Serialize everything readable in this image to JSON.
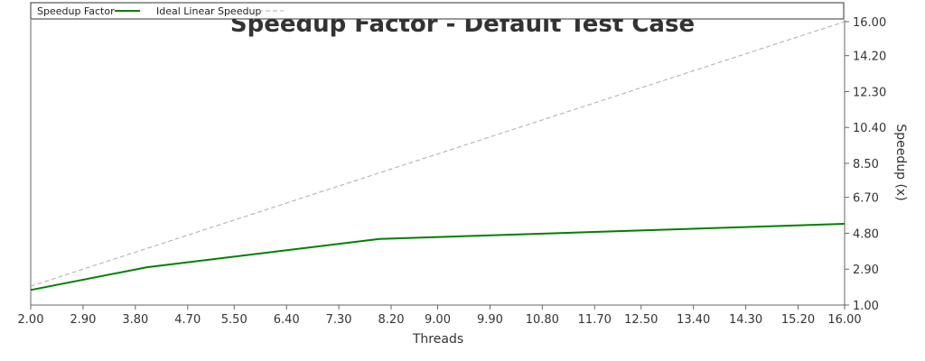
{
  "chart_data": {
    "type": "line",
    "title": "Speedup Factor - Default Test Case",
    "xlabel": "Threads",
    "ylabel": "Speedup (x)",
    "xlim": [
      2.0,
      16.0
    ],
    "ylim": [
      1.0,
      16.0
    ],
    "x_ticks": [
      "2.00",
      "2.90",
      "3.80",
      "4.70",
      "5.50",
      "6.40",
      "7.30",
      "8.20",
      "9.00",
      "9.90",
      "10.80",
      "11.70",
      "12.50",
      "13.40",
      "14.30",
      "15.20",
      "16.00"
    ],
    "y_ticks": [
      "1.00",
      "2.90",
      "4.80",
      "6.70",
      "8.50",
      "10.40",
      "12.30",
      "14.20",
      "16.00"
    ],
    "legend_position": "top",
    "grid": false,
    "series": [
      {
        "name": "Speedup Factor",
        "color": "#008000",
        "style": "solid",
        "x": [
          2,
          4,
          8,
          16
        ],
        "y": [
          1.8,
          3.0,
          4.5,
          5.3
        ]
      },
      {
        "name": "Ideal Linear Speedup",
        "color": "#b0a8b8",
        "style": "dashed",
        "x": [
          2,
          16
        ],
        "y": [
          2,
          16
        ]
      }
    ]
  }
}
